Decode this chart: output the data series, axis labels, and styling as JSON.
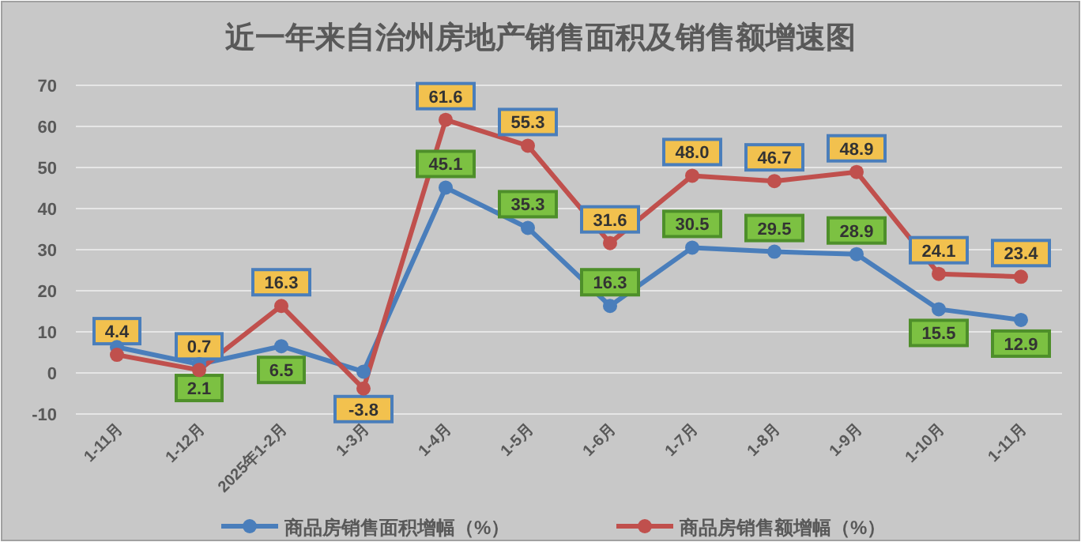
{
  "chart_data": {
    "type": "line",
    "title": "近一年来自治州房地产销售面积及销售额增速图",
    "categories": [
      "1-11月",
      "1-12月",
      "2025年1-2月",
      "1-3月",
      "1-4月",
      "1-5月",
      "1-6月",
      "1-7月",
      "1-8月",
      "1-9月",
      "1-10月",
      "1-11月"
    ],
    "series": [
      {
        "name": "商品房销售面积增幅（%）",
        "color": "#4a7ebb",
        "values": [
          6.3,
          2.1,
          6.5,
          0.3,
          45.1,
          35.3,
          16.3,
          30.5,
          29.5,
          28.9,
          15.5,
          12.9
        ],
        "value_labels": [
          null,
          "2.1",
          "6.5",
          null,
          "45.1",
          "35.3",
          "16.3",
          "30.5",
          "29.5",
          "28.9",
          "15.5",
          "12.9"
        ]
      },
      {
        "name": "商品房销售额增幅（%）",
        "color": "#c0504d",
        "values": [
          4.4,
          0.7,
          16.3,
          -3.8,
          61.6,
          55.3,
          31.6,
          48.0,
          46.7,
          48.9,
          24.1,
          23.4
        ],
        "value_labels": [
          "4.4",
          "0.7",
          "16.3",
          "-3.8",
          "61.6",
          "55.3",
          "31.6",
          "48.0",
          "46.7",
          "48.9",
          "24.1",
          "23.4"
        ]
      }
    ],
    "ylim": [
      -10,
      70
    ],
    "yticks": [
      -10,
      0,
      10,
      20,
      30,
      40,
      50,
      60,
      70
    ],
    "grid": "y",
    "legend": "bottom",
    "marker": "circle",
    "line_style": "solid"
  }
}
